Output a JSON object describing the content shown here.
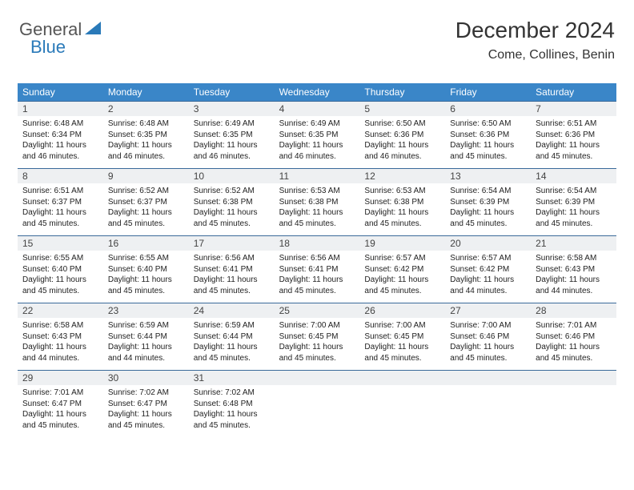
{
  "logo": {
    "word1": "General",
    "word2": "Blue"
  },
  "header": {
    "title": "December 2024",
    "location": "Come, Collines, Benin"
  },
  "colors": {
    "header_bg": "#3a86c8",
    "header_text": "#ffffff",
    "row_divider": "#3a6a9a",
    "daynum_bg": "#eef0f2",
    "body_text": "#222222",
    "logo_gray": "#555555",
    "logo_blue": "#2a7ab9",
    "bg": "#ffffff"
  },
  "typography": {
    "title_fontsize": 28,
    "location_fontsize": 16,
    "dayheader_fontsize": 12,
    "daynum_fontsize": 12,
    "info_fontsize": 10
  },
  "calendar": {
    "type": "table",
    "columns": [
      "Sunday",
      "Monday",
      "Tuesday",
      "Wednesday",
      "Thursday",
      "Friday",
      "Saturday"
    ],
    "col_widths_pct": [
      14.28,
      14.28,
      14.28,
      14.28,
      14.28,
      14.28,
      14.28
    ],
    "days": [
      {
        "n": "1",
        "sunrise": "6:48 AM",
        "sunset": "6:34 PM",
        "daylight": "11 hours and 46 minutes."
      },
      {
        "n": "2",
        "sunrise": "6:48 AM",
        "sunset": "6:35 PM",
        "daylight": "11 hours and 46 minutes."
      },
      {
        "n": "3",
        "sunrise": "6:49 AM",
        "sunset": "6:35 PM",
        "daylight": "11 hours and 46 minutes."
      },
      {
        "n": "4",
        "sunrise": "6:49 AM",
        "sunset": "6:35 PM",
        "daylight": "11 hours and 46 minutes."
      },
      {
        "n": "5",
        "sunrise": "6:50 AM",
        "sunset": "6:36 PM",
        "daylight": "11 hours and 46 minutes."
      },
      {
        "n": "6",
        "sunrise": "6:50 AM",
        "sunset": "6:36 PM",
        "daylight": "11 hours and 45 minutes."
      },
      {
        "n": "7",
        "sunrise": "6:51 AM",
        "sunset": "6:36 PM",
        "daylight": "11 hours and 45 minutes."
      },
      {
        "n": "8",
        "sunrise": "6:51 AM",
        "sunset": "6:37 PM",
        "daylight": "11 hours and 45 minutes."
      },
      {
        "n": "9",
        "sunrise": "6:52 AM",
        "sunset": "6:37 PM",
        "daylight": "11 hours and 45 minutes."
      },
      {
        "n": "10",
        "sunrise": "6:52 AM",
        "sunset": "6:38 PM",
        "daylight": "11 hours and 45 minutes."
      },
      {
        "n": "11",
        "sunrise": "6:53 AM",
        "sunset": "6:38 PM",
        "daylight": "11 hours and 45 minutes."
      },
      {
        "n": "12",
        "sunrise": "6:53 AM",
        "sunset": "6:38 PM",
        "daylight": "11 hours and 45 minutes."
      },
      {
        "n": "13",
        "sunrise": "6:54 AM",
        "sunset": "6:39 PM",
        "daylight": "11 hours and 45 minutes."
      },
      {
        "n": "14",
        "sunrise": "6:54 AM",
        "sunset": "6:39 PM",
        "daylight": "11 hours and 45 minutes."
      },
      {
        "n": "15",
        "sunrise": "6:55 AM",
        "sunset": "6:40 PM",
        "daylight": "11 hours and 45 minutes."
      },
      {
        "n": "16",
        "sunrise": "6:55 AM",
        "sunset": "6:40 PM",
        "daylight": "11 hours and 45 minutes."
      },
      {
        "n": "17",
        "sunrise": "6:56 AM",
        "sunset": "6:41 PM",
        "daylight": "11 hours and 45 minutes."
      },
      {
        "n": "18",
        "sunrise": "6:56 AM",
        "sunset": "6:41 PM",
        "daylight": "11 hours and 45 minutes."
      },
      {
        "n": "19",
        "sunrise": "6:57 AM",
        "sunset": "6:42 PM",
        "daylight": "11 hours and 45 minutes."
      },
      {
        "n": "20",
        "sunrise": "6:57 AM",
        "sunset": "6:42 PM",
        "daylight": "11 hours and 44 minutes."
      },
      {
        "n": "21",
        "sunrise": "6:58 AM",
        "sunset": "6:43 PM",
        "daylight": "11 hours and 44 minutes."
      },
      {
        "n": "22",
        "sunrise": "6:58 AM",
        "sunset": "6:43 PM",
        "daylight": "11 hours and 44 minutes."
      },
      {
        "n": "23",
        "sunrise": "6:59 AM",
        "sunset": "6:44 PM",
        "daylight": "11 hours and 44 minutes."
      },
      {
        "n": "24",
        "sunrise": "6:59 AM",
        "sunset": "6:44 PM",
        "daylight": "11 hours and 45 minutes."
      },
      {
        "n": "25",
        "sunrise": "7:00 AM",
        "sunset": "6:45 PM",
        "daylight": "11 hours and 45 minutes."
      },
      {
        "n": "26",
        "sunrise": "7:00 AM",
        "sunset": "6:45 PM",
        "daylight": "11 hours and 45 minutes."
      },
      {
        "n": "27",
        "sunrise": "7:00 AM",
        "sunset": "6:46 PM",
        "daylight": "11 hours and 45 minutes."
      },
      {
        "n": "28",
        "sunrise": "7:01 AM",
        "sunset": "6:46 PM",
        "daylight": "11 hours and 45 minutes."
      },
      {
        "n": "29",
        "sunrise": "7:01 AM",
        "sunset": "6:47 PM",
        "daylight": "11 hours and 45 minutes."
      },
      {
        "n": "30",
        "sunrise": "7:02 AM",
        "sunset": "6:47 PM",
        "daylight": "11 hours and 45 minutes."
      },
      {
        "n": "31",
        "sunrise": "7:02 AM",
        "sunset": "6:48 PM",
        "daylight": "11 hours and 45 minutes."
      }
    ],
    "labels": {
      "sunrise": "Sunrise:",
      "sunset": "Sunset:",
      "daylight": "Daylight:"
    }
  }
}
